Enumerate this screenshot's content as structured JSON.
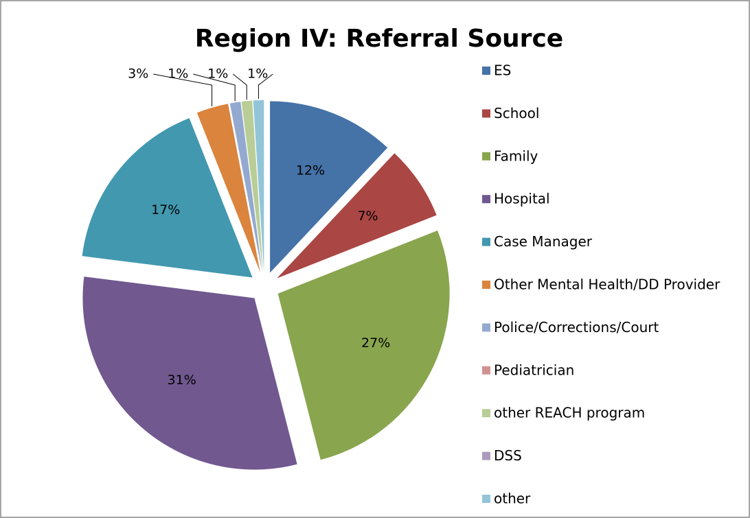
{
  "chart_data": {
    "type": "pie",
    "title": "Region IV: Referral Source",
    "categories": [
      "ES",
      "School",
      "Family",
      "Hospital",
      "Case Manager",
      "Other Mental Health/DD Provider",
      "Police/Corrections/Court",
      "Pediatrician",
      "other REACH program",
      "DSS",
      "other"
    ],
    "values": [
      12,
      7,
      27,
      31,
      17,
      3,
      1,
      0,
      1,
      0,
      1
    ],
    "value_labels": [
      "12%",
      "7%",
      "27%",
      "31%",
      "17%",
      "3%",
      "1%",
      null,
      "1%",
      null,
      "1%"
    ],
    "colors": [
      "#4572a7",
      "#aa4643",
      "#89a54e",
      "#71588f",
      "#4198af",
      "#db843d",
      "#93a9cf",
      "#d19392",
      "#b9cd96",
      "#a99bbd",
      "#92c5d7"
    ],
    "legend": "right"
  }
}
